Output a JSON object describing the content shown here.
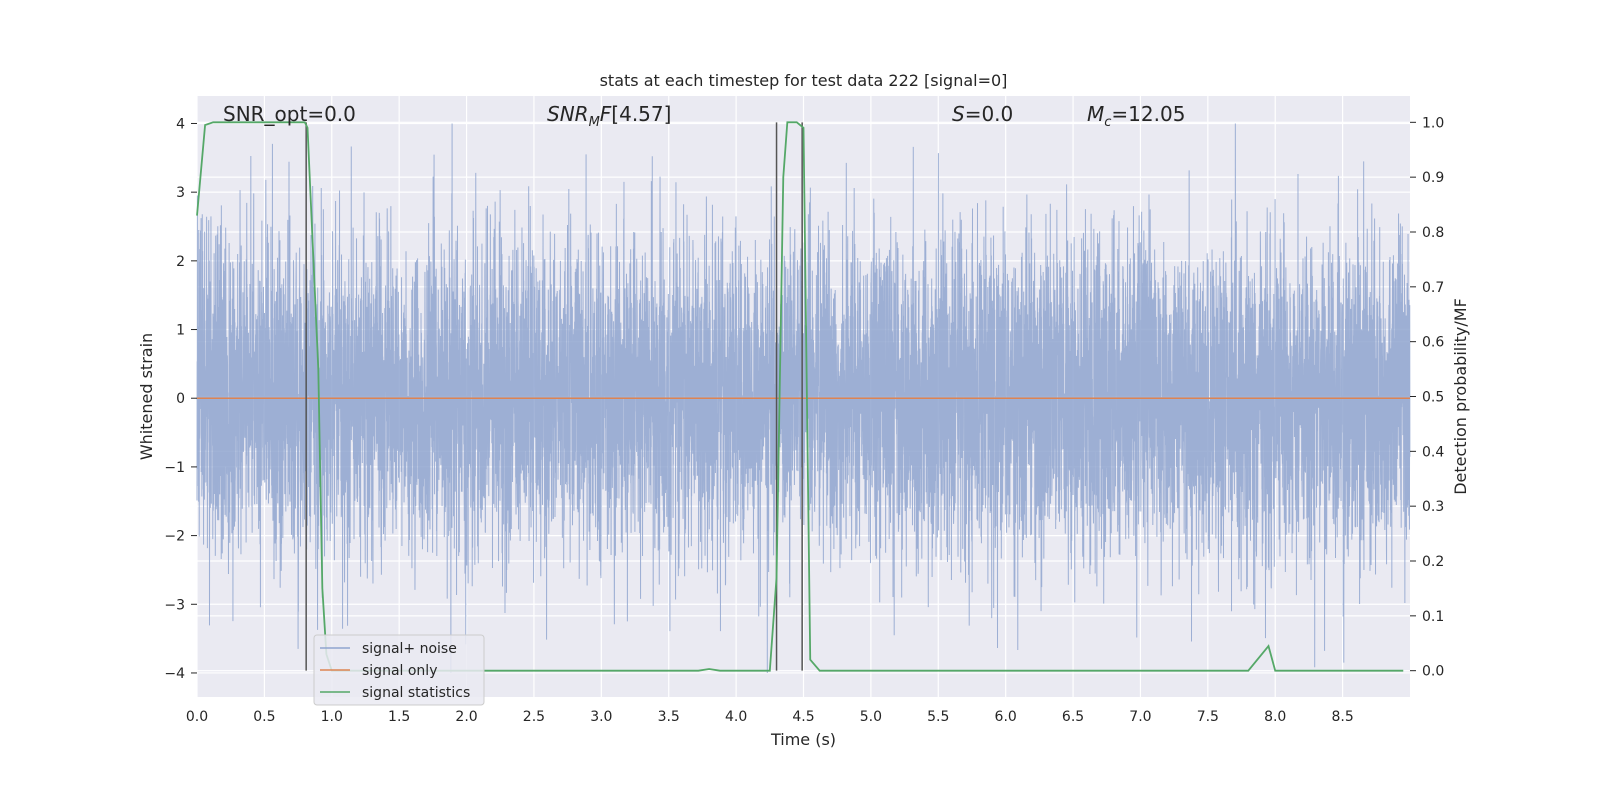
{
  "chart_data": {
    "type": "line",
    "title": "stats at each timestep for test data 222 [signal=0]",
    "xlabel": "Time (s)",
    "ylabel_left": "Whitened strain",
    "ylabel_right": "Detection probability/MF",
    "xlim": [
      0.0,
      9.0
    ],
    "ylim_left": [
      -4.35,
      4.4
    ],
    "ylim_right": [
      -0.048,
      1.048
    ],
    "x_ticks": [
      "0.0",
      "0.5",
      "1.0",
      "1.5",
      "2.0",
      "2.5",
      "3.0",
      "3.5",
      "4.0",
      "4.5",
      "5.0",
      "5.5",
      "6.0",
      "6.5",
      "7.0",
      "7.5",
      "8.0",
      "8.5"
    ],
    "y_ticks_left": [
      "4",
      "3",
      "2",
      "1",
      "0",
      "−1",
      "−2",
      "−3",
      "−4"
    ],
    "y_ticks_right": [
      "1.0",
      "0.9",
      "0.8",
      "0.7",
      "0.6",
      "0.5",
      "0.4",
      "0.3",
      "0.2",
      "0.1",
      "0.0"
    ],
    "grid": true,
    "annotations": {
      "snr_opt": "SNR_opt=0.0",
      "snr_mf": "[4.57]",
      "s": "=0.0",
      "mc": "=12.05"
    },
    "legend": {
      "placement": "lower-left",
      "entries": [
        {
          "label": "signal+ noise",
          "color": "#8fa4cf"
        },
        {
          "label": "signal only",
          "color": "#dd8452"
        },
        {
          "label": "signal statistics",
          "color": "#55a868"
        }
      ]
    },
    "series": [
      {
        "name": "signal+ noise",
        "color": "#8fa4cf",
        "kind": "noise",
        "sample_rate_hz": 1024,
        "amplitude_range": [
          -4.0,
          4.0
        ]
      },
      {
        "name": "signal only",
        "color": "#dd8452",
        "x": [
          0.0,
          9.0
        ],
        "y": [
          0.0,
          0.0
        ]
      },
      {
        "name": "signal statistics",
        "color": "#55a868",
        "axis": "right",
        "x": [
          0.0,
          0.06,
          0.12,
          0.8,
          0.82,
          0.9,
          0.93,
          0.96,
          1.0,
          3.72,
          3.8,
          3.88,
          4.25,
          4.3,
          4.35,
          4.38,
          4.45,
          4.5,
          4.55,
          4.62,
          5.3,
          7.8,
          7.95,
          8.0,
          8.95
        ],
        "y": [
          0.83,
          0.995,
          1.0,
          1.0,
          0.99,
          0.55,
          0.15,
          0.03,
          0.0,
          0.0,
          0.003,
          0.0,
          0.0,
          0.17,
          0.9,
          1.0,
          1.0,
          0.99,
          0.02,
          0.0,
          0.0,
          0.0,
          0.045,
          0.0,
          0.0
        ]
      }
    ],
    "vertical_markers_x": [
      0.81,
      4.3,
      4.49
    ]
  }
}
